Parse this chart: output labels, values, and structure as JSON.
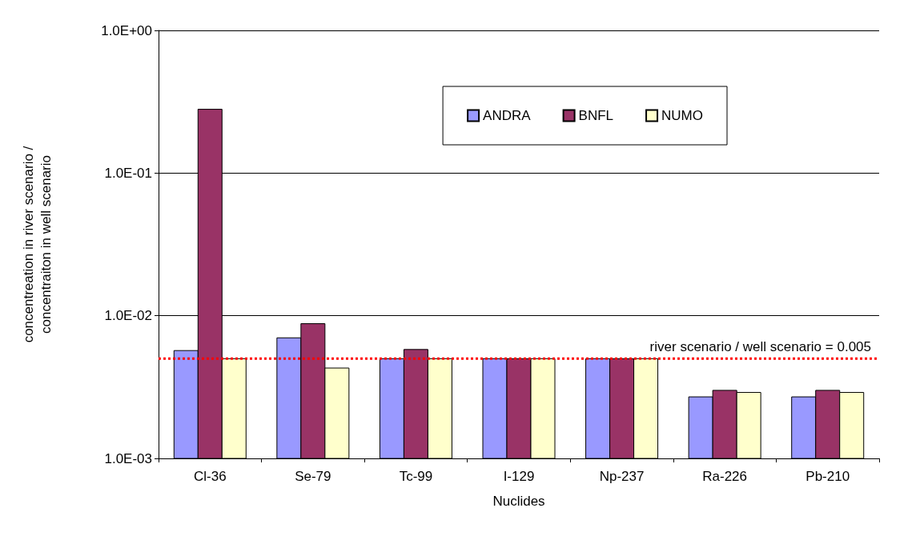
{
  "chart_data": {
    "type": "bar",
    "xlabel": "Nuclides",
    "ylabel": "concentreation in river scenario /\nconcentraiton in well scenario",
    "categories": [
      "Cl-36",
      "Se-79",
      "Tc-99",
      "I-129",
      "Np-237",
      "Ra-226",
      "Pb-210"
    ],
    "series": [
      {
        "name": "ANDRA",
        "color": "#9999ff",
        "values": [
          0.0057,
          0.007,
          0.005,
          0.005,
          0.005,
          0.0027,
          0.0027
        ]
      },
      {
        "name": "BNFL",
        "color": "#993366",
        "values": [
          0.28,
          0.0088,
          0.0058,
          0.005,
          0.005,
          0.003,
          0.003
        ]
      },
      {
        "name": "NUMO",
        "color": "#ffffcc",
        "values": [
          0.005,
          0.0043,
          0.005,
          0.005,
          0.005,
          0.0029,
          0.0029
        ]
      }
    ],
    "log": "y",
    "ylim": [
      0.001,
      1
    ],
    "yticks": [
      {
        "value": 0.001,
        "label": "1.0E-03"
      },
      {
        "value": 0.01,
        "label": "1.0E-02"
      },
      {
        "value": 0.1,
        "label": "1.0E-01"
      },
      {
        "value": 1,
        "label": "1.0E+00"
      }
    ],
    "grid": "y",
    "legend": "top right",
    "ref_lines": [
      {
        "axis": "y",
        "value": 0.005,
        "label": "river scenario / well scenario = 0.005",
        "color": "#ff0000",
        "line_style": "dotted"
      }
    ]
  }
}
